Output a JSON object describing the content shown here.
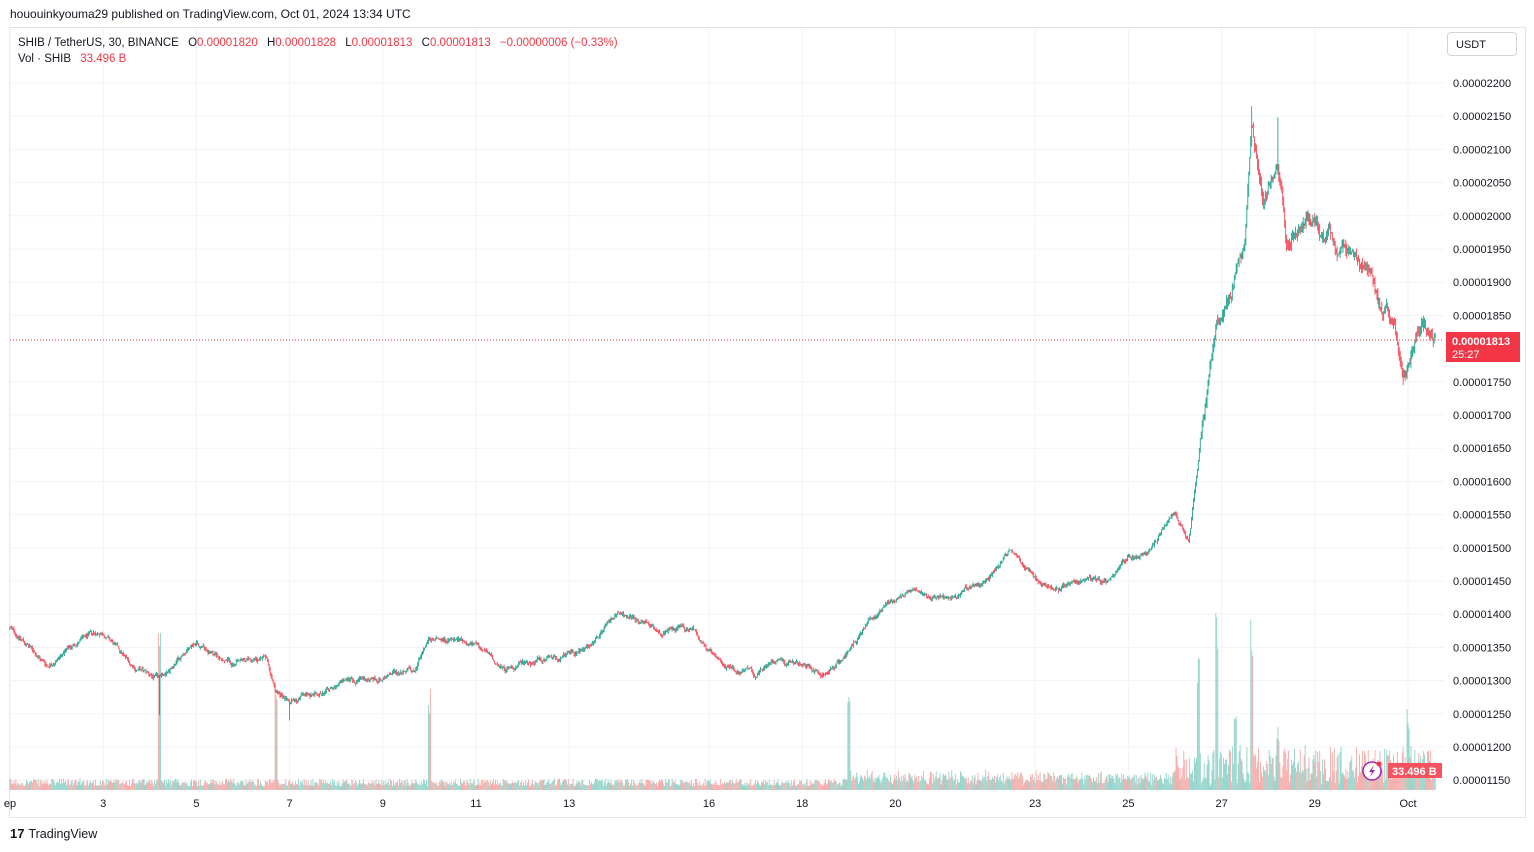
{
  "published": "hououinkyouma29 published on TradingView.com, Oct 01, 2024 13:34 UTC",
  "legend": {
    "symbol": "SHIB / TetherUS, 30, BINANCE",
    "o_label": "O",
    "o": "0.00001820",
    "h_label": "H",
    "h": "0.00001828",
    "l_label": "L",
    "l": "0.00001813",
    "c_label": "C",
    "c": "0.00001813",
    "change": "−0.00000006 (−0.33%)",
    "vol_label": "Vol · SHIB",
    "vol": "33.496 B"
  },
  "currency_button": "USDT",
  "last_price_tag": {
    "price": "0.00001813",
    "countdown": "25:27"
  },
  "volume_tag": "33.496 B",
  "footer": {
    "logo": "17",
    "brand": "TradingView"
  },
  "colors": {
    "up": "#089981",
    "down": "#f23645",
    "vol_up": "#8fd3c9",
    "vol_down": "#f7a9a7",
    "grid": "#f0f3fa"
  },
  "chart_data": {
    "type": "candlestick",
    "title": "SHIB / TetherUS, 30, BINANCE",
    "interval": "30m",
    "ylabel": "USDT",
    "ylim": [
      1.15e-05,
      2.23e-05
    ],
    "y_ticks": [
      "0.00002200",
      "0.00002150",
      "0.00002100",
      "0.00002050",
      "0.00002000",
      "0.00001950",
      "0.00001900",
      "0.00001850",
      "0.00001750",
      "0.00001700",
      "0.00001650",
      "0.00001600",
      "0.00001550",
      "0.00001500",
      "0.00001450",
      "0.00001400",
      "0.00001350",
      "0.00001300",
      "0.00001250",
      "0.00001200",
      "0.00001150"
    ],
    "x_ticks": [
      {
        "day": 1,
        "label": "ep"
      },
      {
        "day": 3,
        "label": "3"
      },
      {
        "day": 5,
        "label": "5"
      },
      {
        "day": 7,
        "label": "7"
      },
      {
        "day": 9,
        "label": "9"
      },
      {
        "day": 11,
        "label": "11"
      },
      {
        "day": 13,
        "label": "13"
      },
      {
        "day": 16,
        "label": "16"
      },
      {
        "day": 18,
        "label": "18"
      },
      {
        "day": 20,
        "label": "20"
      },
      {
        "day": 23,
        "label": "23"
      },
      {
        "day": 25,
        "label": "25"
      },
      {
        "day": 27,
        "label": "27"
      },
      {
        "day": 29,
        "label": "29"
      },
      {
        "day": 31,
        "label": "Oct"
      }
    ],
    "grid": true,
    "price_path_note": "approximate close prices, day = day of Sep 2024 (31 = Oct 1), price in 1e-8 USDT",
    "price_path": [
      [
        1.0,
        1379
      ],
      [
        1.8,
        1323
      ],
      [
        2.5,
        1361
      ],
      [
        3.0,
        1373
      ],
      [
        3.6,
        1323
      ],
      [
        4.2,
        1301
      ],
      [
        5.0,
        1361
      ],
      [
        5.8,
        1323
      ],
      [
        6.5,
        1334
      ],
      [
        6.7,
        1286
      ],
      [
        7.0,
        1271
      ],
      [
        8.0,
        1293
      ],
      [
        9.0,
        1304
      ],
      [
        9.7,
        1319
      ],
      [
        10.0,
        1364
      ],
      [
        11.0,
        1354
      ],
      [
        11.6,
        1316
      ],
      [
        12.5,
        1331
      ],
      [
        13.5,
        1349
      ],
      [
        14.0,
        1403
      ],
      [
        15.0,
        1373
      ],
      [
        15.7,
        1376
      ],
      [
        16.2,
        1323
      ],
      [
        17.0,
        1308
      ],
      [
        17.5,
        1331
      ],
      [
        18.5,
        1308
      ],
      [
        19.0,
        1346
      ],
      [
        19.5,
        1399
      ],
      [
        20.0,
        1421
      ],
      [
        20.5,
        1436
      ],
      [
        21.2,
        1421
      ],
      [
        22.0,
        1455
      ],
      [
        22.5,
        1497
      ],
      [
        23.0,
        1459
      ],
      [
        23.5,
        1436
      ],
      [
        24.0,
        1455
      ],
      [
        24.5,
        1449
      ],
      [
        25.0,
        1482
      ],
      [
        25.5,
        1500
      ],
      [
        26.0,
        1557
      ],
      [
        26.3,
        1512
      ],
      [
        26.6,
        1692
      ],
      [
        26.9,
        1828
      ],
      [
        27.2,
        1888
      ],
      [
        27.5,
        1964
      ],
      [
        27.65,
        2144
      ],
      [
        27.9,
        2024
      ],
      [
        28.2,
        2099
      ],
      [
        28.4,
        1948
      ],
      [
        28.8,
        1994
      ],
      [
        29.2,
        1979
      ],
      [
        29.6,
        1948
      ],
      [
        30.0,
        1933
      ],
      [
        30.4,
        1858
      ],
      [
        30.7,
        1843
      ],
      [
        30.9,
        1768
      ],
      [
        31.3,
        1843
      ],
      [
        31.6,
        1813
      ]
    ],
    "wick_spikes": [
      [
        4.2,
        1248
      ],
      [
        7.0,
        1240
      ],
      [
        27.65,
        2165
      ],
      [
        28.2,
        2148
      ],
      [
        30.9,
        1745
      ]
    ],
    "volume_spikes_relative": [
      [
        4.2,
        0.85
      ],
      [
        6.7,
        0.6
      ],
      [
        10.0,
        0.55
      ],
      [
        19.0,
        0.55
      ],
      [
        26.5,
        0.7
      ],
      [
        26.9,
        0.95
      ],
      [
        27.3,
        0.45
      ],
      [
        27.65,
        1.0
      ],
      [
        28.2,
        0.35
      ],
      [
        31.0,
        0.45
      ]
    ],
    "last_price": 1.813e-05,
    "last_volume": "33.496 B"
  }
}
